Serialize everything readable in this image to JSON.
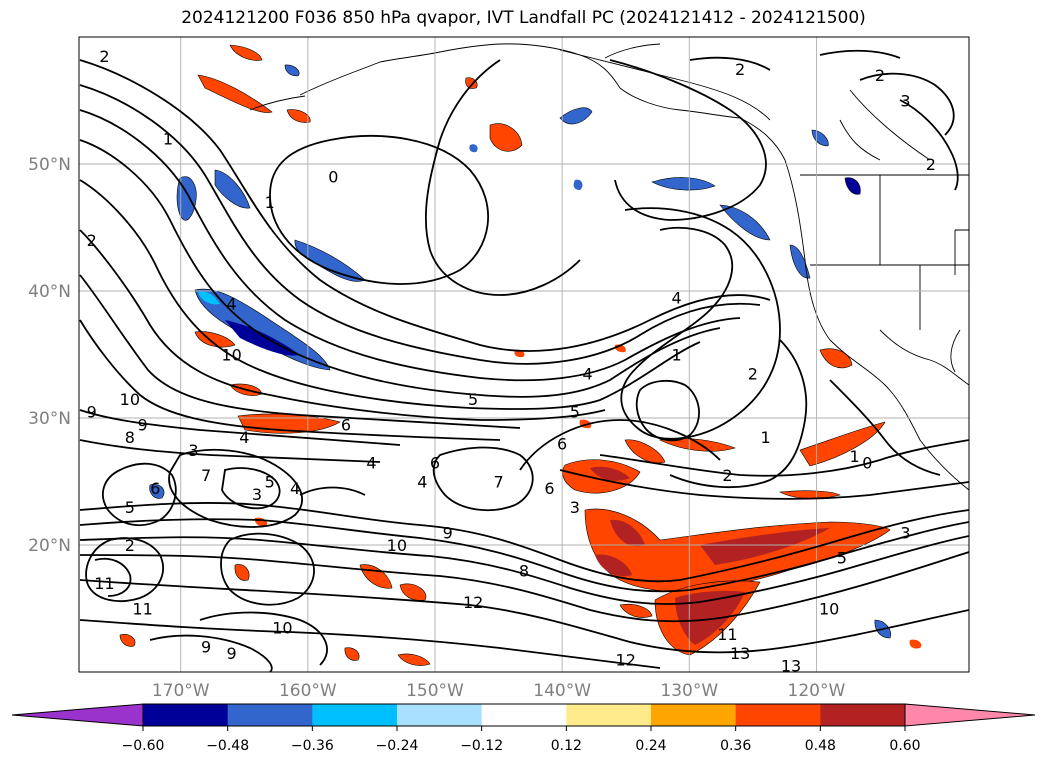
{
  "title": "2024121200 F036 850 hPa qvapor, IVT Landfall PC (2024121412 - 2024121500)",
  "map": {
    "lon_range": [
      -178,
      -108
    ],
    "lat_range": [
      10,
      60
    ],
    "lon_ticks": [
      {
        "value": -170,
        "label": "170°W"
      },
      {
        "value": -160,
        "label": "160°W"
      },
      {
        "value": -150,
        "label": "150°W"
      },
      {
        "value": -140,
        "label": "140°W"
      },
      {
        "value": -130,
        "label": "130°W"
      },
      {
        "value": -120,
        "label": "120°W"
      }
    ],
    "lat_ticks": [
      {
        "value": 20,
        "label": "20°N"
      },
      {
        "value": 30,
        "label": "30°N"
      },
      {
        "value": 40,
        "label": "40°N"
      },
      {
        "value": 50,
        "label": "50°N"
      }
    ],
    "grid": true
  },
  "colorbar": {
    "levels": [
      -0.6,
      -0.48,
      -0.36,
      -0.24,
      -0.12,
      0.12,
      0.24,
      0.36,
      0.48,
      0.6
    ],
    "labels": [
      "−0.60",
      "−0.48",
      "−0.36",
      "−0.24",
      "−0.12",
      "0.12",
      "0.24",
      "0.36",
      "0.48",
      "0.60"
    ],
    "colors": [
      "#9933cc",
      "#000099",
      "#3366cc",
      "#00bfff",
      "#a9e0ff",
      "#ffffff",
      "#ffeb8c",
      "#ffa500",
      "#ff4500",
      "#b22222",
      "#ff88aa"
    ],
    "extend": "both"
  },
  "contour_labels": [
    {
      "text": "2",
      "lon": -176,
      "lat": 58.5
    },
    {
      "text": "2",
      "lon": -177,
      "lat": 44
    },
    {
      "text": "1",
      "lon": -171,
      "lat": 52
    },
    {
      "text": "1",
      "lon": -163,
      "lat": 47
    },
    {
      "text": "0",
      "lon": -158,
      "lat": 49
    },
    {
      "text": "4",
      "lon": -166,
      "lat": 39
    },
    {
      "text": "10",
      "lon": -166,
      "lat": 35
    },
    {
      "text": "10",
      "lon": -174,
      "lat": 31.5
    },
    {
      "text": "9",
      "lon": -177,
      "lat": 30.5
    },
    {
      "text": "8",
      "lon": -174,
      "lat": 28.5
    },
    {
      "text": "9",
      "lon": -173,
      "lat": 29.5
    },
    {
      "text": "3",
      "lon": -169,
      "lat": 27.5
    },
    {
      "text": "4",
      "lon": -165,
      "lat": 28.5
    },
    {
      "text": "6",
      "lon": -157,
      "lat": 29.5
    },
    {
      "text": "4",
      "lon": -155,
      "lat": 26.5
    },
    {
      "text": "6",
      "lon": -150,
      "lat": 26.5
    },
    {
      "text": "5",
      "lon": -147,
      "lat": 31.5
    },
    {
      "text": "4",
      "lon": -138,
      "lat": 33.5
    },
    {
      "text": "4",
      "lon": -131,
      "lat": 39.5
    },
    {
      "text": "1",
      "lon": -131,
      "lat": 35
    },
    {
      "text": "2",
      "lon": -125,
      "lat": 33.5
    },
    {
      "text": "5",
      "lon": -139,
      "lat": 30.5
    },
    {
      "text": "6",
      "lon": -140,
      "lat": 28
    },
    {
      "text": "1",
      "lon": -124,
      "lat": 28.5
    },
    {
      "text": "2",
      "lon": -127,
      "lat": 25.5
    },
    {
      "text": "1",
      "lon": -117,
      "lat": 27
    },
    {
      "text": "0",
      "lon": -116,
      "lat": 26.5
    },
    {
      "text": "7",
      "lon": -168,
      "lat": 25.5
    },
    {
      "text": "6",
      "lon": -172,
      "lat": 24.5
    },
    {
      "text": "5",
      "lon": -163,
      "lat": 25
    },
    {
      "text": "3",
      "lon": -164,
      "lat": 24
    },
    {
      "text": "4",
      "lon": -161,
      "lat": 24.5
    },
    {
      "text": "4",
      "lon": -151,
      "lat": 25
    },
    {
      "text": "7",
      "lon": -145,
      "lat": 25
    },
    {
      "text": "6",
      "lon": -141,
      "lat": 24.5
    },
    {
      "text": "3",
      "lon": -139,
      "lat": 23
    },
    {
      "text": "5",
      "lon": -174,
      "lat": 23
    },
    {
      "text": "2",
      "lon": -174,
      "lat": 20
    },
    {
      "text": "9",
      "lon": -149,
      "lat": 21
    },
    {
      "text": "10",
      "lon": -153,
      "lat": 20
    },
    {
      "text": "8",
      "lon": -143,
      "lat": 18
    },
    {
      "text": "12",
      "lon": -147,
      "lat": 15.5
    },
    {
      "text": "11",
      "lon": -176,
      "lat": 17
    },
    {
      "text": "11",
      "lon": -173,
      "lat": 15
    },
    {
      "text": "10",
      "lon": -162,
      "lat": 13.5
    },
    {
      "text": "9",
      "lon": -168,
      "lat": 12
    },
    {
      "text": "9",
      "lon": -166,
      "lat": 11.5
    },
    {
      "text": "10",
      "lon": -119,
      "lat": 15
    },
    {
      "text": "11",
      "lon": -127,
      "lat": 13
    },
    {
      "text": "13",
      "lon": -126,
      "lat": 11.5
    },
    {
      "text": "13",
      "lon": -122,
      "lat": 10.5
    },
    {
      "text": "12",
      "lon": -135,
      "lat": 11
    },
    {
      "text": "3",
      "lon": -113,
      "lat": 21
    },
    {
      "text": "5",
      "lon": -118,
      "lat": 19
    },
    {
      "text": "2",
      "lon": -126,
      "lat": 57.5
    },
    {
      "text": "2",
      "lon": -115,
      "lat": 57
    },
    {
      "text": "3",
      "lon": -113,
      "lat": 55
    },
    {
      "text": "2",
      "lon": -111,
      "lat": 50
    }
  ]
}
